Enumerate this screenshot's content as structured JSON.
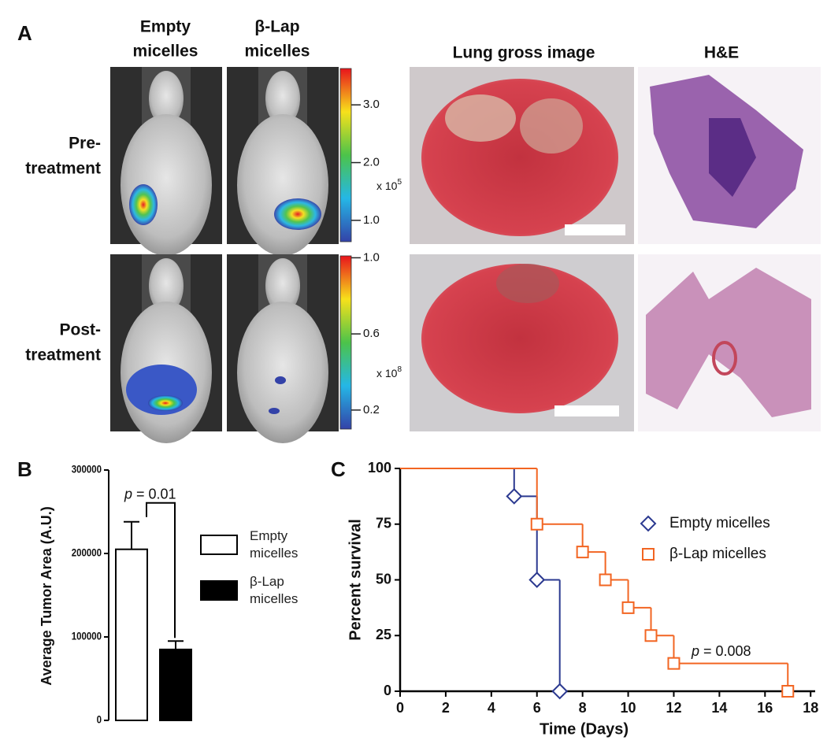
{
  "panel_a": {
    "label": "A",
    "columns": [
      [
        "Empty",
        "micelles"
      ],
      [
        "β-Lap",
        "micelles"
      ],
      [
        "Lung gross image"
      ],
      [
        "H&E"
      ]
    ],
    "rows": [
      [
        "Pre-",
        "treatment"
      ],
      [
        "Post-",
        "treatment"
      ]
    ],
    "colorbars": [
      {
        "clim": [
          0.63,
          3.63
        ],
        "ticks": [
          {
            "value": 3,
            "label": "3.0"
          },
          {
            "value": 2,
            "label": "2.0"
          },
          {
            "value": 1,
            "label": "1.0"
          }
        ],
        "unit": "x 10",
        "exponent": "5"
      },
      {
        "clim": [
          0.1,
          1.01
        ],
        "ticks": [
          {
            "value": 1,
            "label": "1.0"
          },
          {
            "value": 0.6,
            "label": "0.6"
          },
          {
            "value": 0.2,
            "label": "0.2"
          }
        ],
        "unit": "x 10",
        "exponent": "8"
      }
    ]
  },
  "chart_data": [
    {
      "type": "bar",
      "label": "B",
      "ylabel": "Average Tumor Area (A.U.)",
      "categories": [
        "Empty micelles",
        "β-Lap micelles"
      ],
      "values": [
        205000,
        85000
      ],
      "errors": [
        33000,
        10000
      ],
      "colors": [
        "#ffffff",
        "#000000"
      ],
      "ylim": [
        0,
        300000
      ],
      "yticks": [
        0,
        100000,
        200000,
        300000
      ],
      "annotation": {
        "italic": "p",
        "text": "= 0.01"
      }
    },
    {
      "type": "line",
      "step": true,
      "label": "C",
      "xlabel": "Time (Days)",
      "ylabel": "Percent survival",
      "xlim": [
        0,
        18.2
      ],
      "xticks": [
        0,
        2,
        4,
        6,
        8,
        10,
        12,
        14,
        16,
        18
      ],
      "ylim": [
        0,
        100
      ],
      "yticks": [
        0,
        25,
        50,
        75,
        100
      ],
      "series": [
        {
          "name": "Empty micelles",
          "color": "#2b3990",
          "marker": "diamond",
          "x": [
            0,
            5,
            6,
            7
          ],
          "values": [
            100,
            87.5,
            50,
            0
          ]
        },
        {
          "name": "β-Lap micelles",
          "color": "#f26522",
          "marker": "square",
          "x": [
            0,
            6,
            8,
            9,
            10,
            11,
            12,
            17
          ],
          "values": [
            100,
            75,
            62.5,
            50,
            37.5,
            25,
            12.5,
            0
          ]
        }
      ],
      "annotation": {
        "italic": "p",
        "text": "= 0.008"
      }
    }
  ]
}
